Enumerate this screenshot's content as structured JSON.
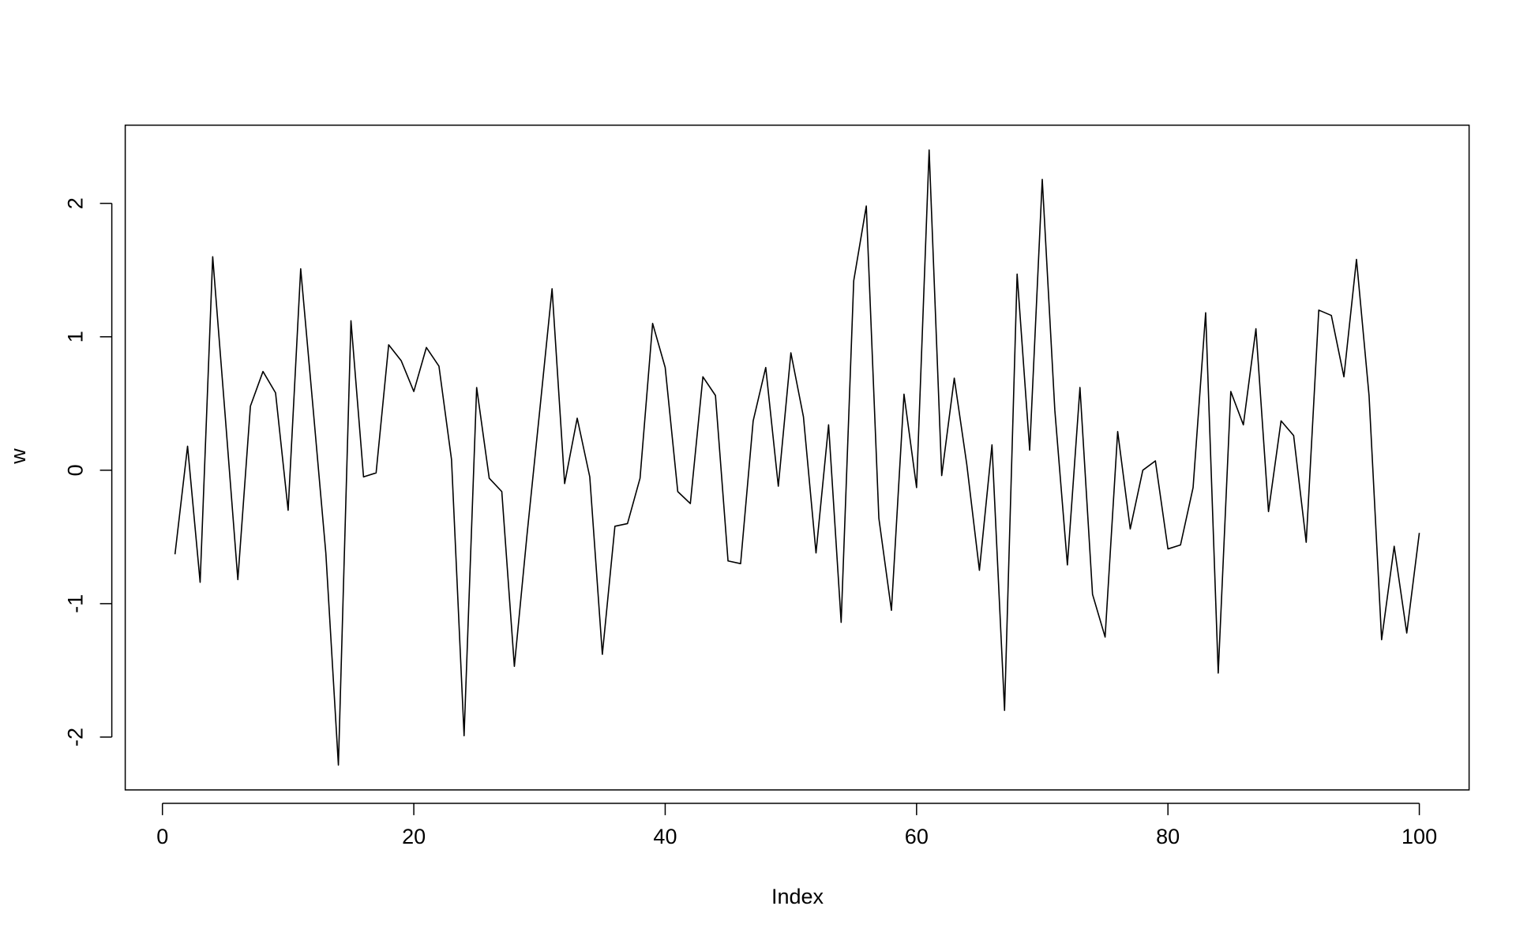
{
  "chart_data": {
    "type": "line",
    "x_label": "Index",
    "y_label": "w",
    "x": [
      1,
      2,
      3,
      4,
      5,
      6,
      7,
      8,
      9,
      10,
      11,
      12,
      13,
      14,
      15,
      16,
      17,
      18,
      19,
      20,
      21,
      22,
      23,
      24,
      25,
      26,
      27,
      28,
      29,
      30,
      31,
      32,
      33,
      34,
      35,
      36,
      37,
      38,
      39,
      40,
      41,
      42,
      43,
      44,
      45,
      46,
      47,
      48,
      49,
      50,
      51,
      52,
      53,
      54,
      55,
      56,
      57,
      58,
      59,
      60,
      61,
      62,
      63,
      64,
      65,
      66,
      67,
      68,
      69,
      70,
      71,
      72,
      73,
      74,
      75,
      76,
      77,
      78,
      79,
      80,
      81,
      82,
      83,
      84,
      85,
      86,
      87,
      88,
      89,
      90,
      91,
      92,
      93,
      94,
      95,
      96,
      97,
      98,
      99,
      100
    ],
    "series": [
      {
        "color": "#000000",
        "values": [
          -0.63,
          0.18,
          -0.84,
          1.6,
          0.4,
          -0.82,
          0.48,
          0.74,
          0.58,
          -0.3,
          1.51,
          0.45,
          -0.62,
          -2.21,
          1.12,
          -0.05,
          -0.02,
          0.94,
          0.82,
          0.59,
          0.92,
          0.78,
          0.08,
          -1.99,
          0.62,
          -0.06,
          -0.16,
          -1.47,
          -0.49,
          0.43,
          1.36,
          -0.1,
          0.39,
          -0.05,
          -1.38,
          -0.42,
          -0.4,
          -0.06,
          1.1,
          0.77,
          -0.16,
          -0.25,
          0.7,
          0.56,
          -0.68,
          -0.7,
          0.37,
          0.77,
          -0.12,
          0.88,
          0.4,
          -0.62,
          0.34,
          -1.14,
          1.42,
          1.98,
          -0.36,
          -1.05,
          0.57,
          -0.13,
          2.4,
          -0.04,
          0.69,
          0.04,
          -0.75,
          0.19,
          -1.8,
          1.47,
          0.15,
          2.18,
          0.45,
          -0.71,
          0.62,
          -0.93,
          -1.25,
          0.29,
          -0.44,
          0.0,
          0.07,
          -0.59,
          -0.56,
          -0.13,
          1.18,
          -1.52,
          0.59,
          0.34,
          1.06,
          -0.31,
          0.37,
          0.26,
          -0.54,
          1.2,
          1.16,
          0.7,
          1.58,
          0.56,
          -1.27,
          -0.57,
          -1.22,
          -0.47
        ]
      }
    ],
    "xlim": [
      -2.96,
      103.96
    ],
    "ylim": [
      -2.396,
      2.586
    ],
    "xticks": [
      0,
      20,
      40,
      60,
      80,
      100
    ],
    "yticks": [
      -2,
      -1,
      0,
      1,
      2
    ]
  }
}
